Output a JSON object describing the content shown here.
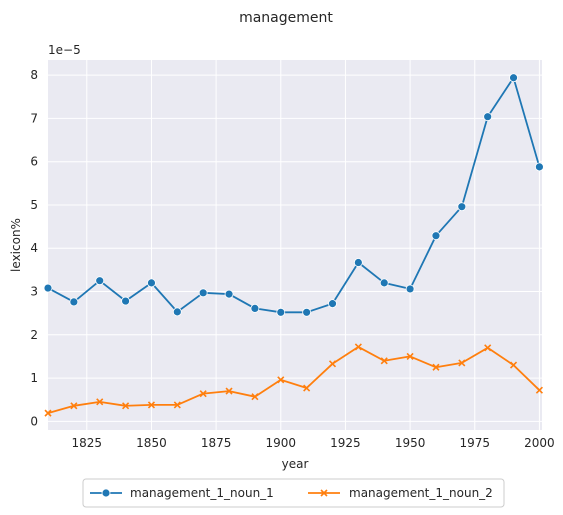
{
  "chart_data": {
    "type": "line",
    "title": "management",
    "xlabel": "year",
    "ylabel": "lexicon%",
    "y_multiplier": "1e−5",
    "x": [
      1810,
      1820,
      1830,
      1840,
      1850,
      1860,
      1870,
      1880,
      1890,
      1900,
      1910,
      1920,
      1930,
      1940,
      1950,
      1960,
      1970,
      1980,
      1990,
      2000
    ],
    "xlim": [
      1810,
      2001
    ],
    "ylim": [
      -0.2,
      8.35
    ],
    "x_ticks": [
      1825,
      1850,
      1875,
      1900,
      1925,
      1950,
      1975,
      2000
    ],
    "y_ticks": [
      0,
      1,
      2,
      3,
      4,
      5,
      6,
      7,
      8
    ],
    "grid": true,
    "legend_position": "bottom-center",
    "series": [
      {
        "name": "management_1_noun_1",
        "color": "#1f77b4",
        "marker": "circle",
        "values": [
          3.08,
          2.76,
          3.25,
          2.78,
          3.2,
          2.53,
          2.97,
          2.94,
          2.61,
          2.52,
          2.52,
          2.72,
          3.67,
          3.2,
          3.06,
          4.29,
          4.96,
          7.04,
          7.94,
          5.88
        ]
      },
      {
        "name": "management_1_noun_2",
        "color": "#ff7f0e",
        "marker": "x",
        "values": [
          0.19,
          0.36,
          0.45,
          0.36,
          0.38,
          0.38,
          0.64,
          0.7,
          0.57,
          0.96,
          0.77,
          1.33,
          1.72,
          1.4,
          1.5,
          1.25,
          1.35,
          1.7,
          1.3,
          0.72
        ]
      }
    ]
  }
}
